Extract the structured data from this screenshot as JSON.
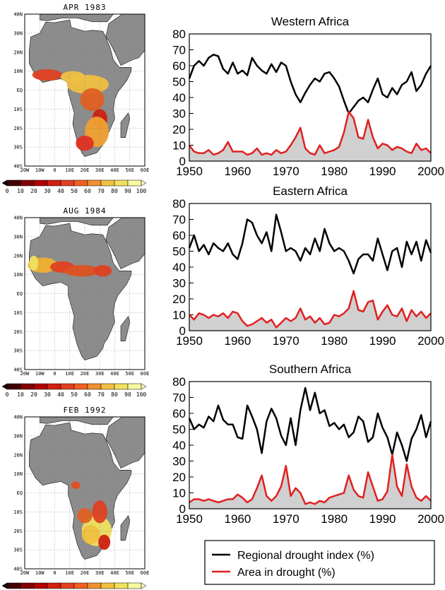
{
  "maps": {
    "panels": [
      {
        "title": "APR 1983"
      },
      {
        "title": "AUG 1984"
      },
      {
        "title": "FEB 1992"
      }
    ],
    "lat_labels": [
      "40N",
      "30N",
      "20N",
      "10N",
      "EQ",
      "10S",
      "20S",
      "30S",
      "40S"
    ],
    "lon_labels": [
      "20W",
      "10W",
      "0",
      "10E",
      "20E",
      "30E",
      "40E",
      "50E",
      "60E"
    ],
    "colorbar_labels": [
      "0",
      "10",
      "20",
      "30",
      "40",
      "50",
      "60",
      "70",
      "80",
      "90",
      "100"
    ],
    "colorbar_colors": [
      "#000000",
      "#400000",
      "#800000",
      "#b00000",
      "#d02010",
      "#e04020",
      "#f06020",
      "#f09030",
      "#f0c040",
      "#f0e060",
      "#f8f8a0",
      "#f8f8c0"
    ]
  },
  "chart_data": [
    {
      "type": "line",
      "title": "Western Africa",
      "x": [
        1950,
        1951,
        1952,
        1953,
        1954,
        1955,
        1956,
        1957,
        1958,
        1959,
        1960,
        1961,
        1962,
        1963,
        1964,
        1965,
        1966,
        1967,
        1968,
        1969,
        1970,
        1971,
        1972,
        1973,
        1974,
        1975,
        1976,
        1977,
        1978,
        1979,
        1980,
        1981,
        1982,
        1983,
        1984,
        1985,
        1986,
        1987,
        1988,
        1989,
        1990,
        1991,
        1992,
        1993,
        1994,
        1995,
        1996,
        1997,
        1998,
        1999,
        2000
      ],
      "xlim": [
        1950,
        2000
      ],
      "xticks": [
        1950,
        1960,
        1970,
        1980,
        1990,
        2000
      ],
      "ylim": [
        0,
        80
      ],
      "yticks": [
        0,
        10,
        20,
        30,
        40,
        50,
        60,
        70,
        80
      ],
      "series": [
        {
          "name": "Regional drought index (%)",
          "color": "#000000",
          "values": [
            52,
            60,
            63,
            60,
            65,
            67,
            66,
            58,
            55,
            62,
            55,
            57,
            54,
            65,
            60,
            57,
            55,
            61,
            56,
            62,
            60,
            50,
            42,
            37,
            43,
            48,
            52,
            50,
            55,
            56,
            52,
            47,
            38,
            30,
            34,
            38,
            40,
            37,
            45,
            52,
            42,
            40,
            46,
            42,
            48,
            50,
            56,
            44,
            48,
            55,
            60
          ]
        },
        {
          "name": "Area in drought (%)",
          "color": "#e02020",
          "area_color": "#d0d0d0",
          "values": [
            10,
            6,
            5,
            5,
            7,
            4,
            5,
            7,
            12,
            6,
            6,
            6,
            4,
            5,
            8,
            4,
            5,
            4,
            7,
            5,
            6,
            10,
            15,
            21,
            8,
            5,
            4,
            10,
            5,
            6,
            7,
            9,
            18,
            31,
            27,
            15,
            14,
            26,
            15,
            8,
            11,
            10,
            7,
            9,
            8,
            6,
            5,
            11,
            7,
            8,
            5
          ]
        }
      ]
    },
    {
      "type": "line",
      "title": "Eastern Africa",
      "x": [
        1950,
        1951,
        1952,
        1953,
        1954,
        1955,
        1956,
        1957,
        1958,
        1959,
        1960,
        1961,
        1962,
        1963,
        1964,
        1965,
        1966,
        1967,
        1968,
        1969,
        1970,
        1971,
        1972,
        1973,
        1974,
        1975,
        1976,
        1977,
        1978,
        1979,
        1980,
        1981,
        1982,
        1983,
        1984,
        1985,
        1986,
        1987,
        1988,
        1989,
        1990,
        1991,
        1992,
        1993,
        1994,
        1995,
        1996,
        1997,
        1998,
        1999,
        2000
      ],
      "xlim": [
        1950,
        2000
      ],
      "xticks": [
        1950,
        1960,
        1970,
        1980,
        1990,
        2000
      ],
      "ylim": [
        0,
        80
      ],
      "yticks": [
        0,
        10,
        20,
        30,
        40,
        50,
        60,
        70,
        80
      ],
      "series": [
        {
          "name": "Regional drought index (%)",
          "color": "#000000",
          "values": [
            52,
            60,
            50,
            54,
            48,
            55,
            52,
            50,
            55,
            48,
            45,
            55,
            70,
            68,
            60,
            55,
            62,
            50,
            73,
            62,
            50,
            52,
            50,
            44,
            52,
            48,
            58,
            50,
            64,
            55,
            50,
            52,
            50,
            44,
            36,
            45,
            48,
            48,
            44,
            58,
            48,
            38,
            50,
            52,
            40,
            56,
            48,
            56,
            44,
            57,
            49
          ]
        },
        {
          "name": "Area in drought (%)",
          "color": "#e02020",
          "area_color": "#d0d0d0",
          "values": [
            10,
            7,
            11,
            10,
            8,
            10,
            9,
            11,
            8,
            12,
            11,
            6,
            3,
            4,
            6,
            8,
            5,
            7,
            2,
            5,
            8,
            6,
            8,
            14,
            7,
            9,
            5,
            8,
            4,
            5,
            10,
            9,
            11,
            14,
            25,
            13,
            12,
            18,
            19,
            7,
            12,
            16,
            10,
            9,
            14,
            6,
            13,
            9,
            12,
            8,
            11
          ]
        }
      ]
    },
    {
      "type": "line",
      "title": "Southern Africa",
      "x": [
        1950,
        1951,
        1952,
        1953,
        1954,
        1955,
        1956,
        1957,
        1958,
        1959,
        1960,
        1961,
        1962,
        1963,
        1964,
        1965,
        1966,
        1967,
        1968,
        1969,
        1970,
        1971,
        1972,
        1973,
        1974,
        1975,
        1976,
        1977,
        1978,
        1979,
        1980,
        1981,
        1982,
        1983,
        1984,
        1985,
        1986,
        1987,
        1988,
        1989,
        1990,
        1991,
        1992,
        1993,
        1994,
        1995,
        1996,
        1997,
        1998,
        1999,
        2000
      ],
      "xlim": [
        1950,
        2000
      ],
      "xticks": [
        1950,
        1960,
        1970,
        1980,
        1990,
        2000
      ],
      "ylim": [
        0,
        80
      ],
      "yticks": [
        0,
        10,
        20,
        30,
        40,
        50,
        60,
        70,
        80
      ],
      "series": [
        {
          "name": "Regional drought index (%)",
          "color": "#000000",
          "values": [
            57,
            50,
            53,
            51,
            58,
            55,
            65,
            56,
            53,
            53,
            45,
            44,
            65,
            58,
            50,
            35,
            55,
            63,
            57,
            46,
            40,
            57,
            40,
            62,
            76,
            62,
            73,
            60,
            62,
            52,
            54,
            50,
            53,
            45,
            48,
            58,
            55,
            42,
            45,
            60,
            51,
            45,
            34,
            48,
            40,
            30,
            44,
            50,
            59,
            45,
            55
          ]
        },
        {
          "name": "Area in drought (%)",
          "color": "#e02020",
          "area_color": "#d0d0d0",
          "values": [
            4,
            6,
            6,
            5,
            6,
            5,
            4,
            5,
            6,
            6,
            9,
            7,
            4,
            6,
            13,
            21,
            8,
            5,
            8,
            14,
            27,
            8,
            13,
            10,
            3,
            4,
            3,
            5,
            4,
            7,
            8,
            9,
            10,
            21,
            12,
            8,
            7,
            23,
            14,
            5,
            6,
            11,
            34,
            14,
            8,
            28,
            14,
            7,
            5,
            8,
            5
          ]
        }
      ]
    }
  ]
}
